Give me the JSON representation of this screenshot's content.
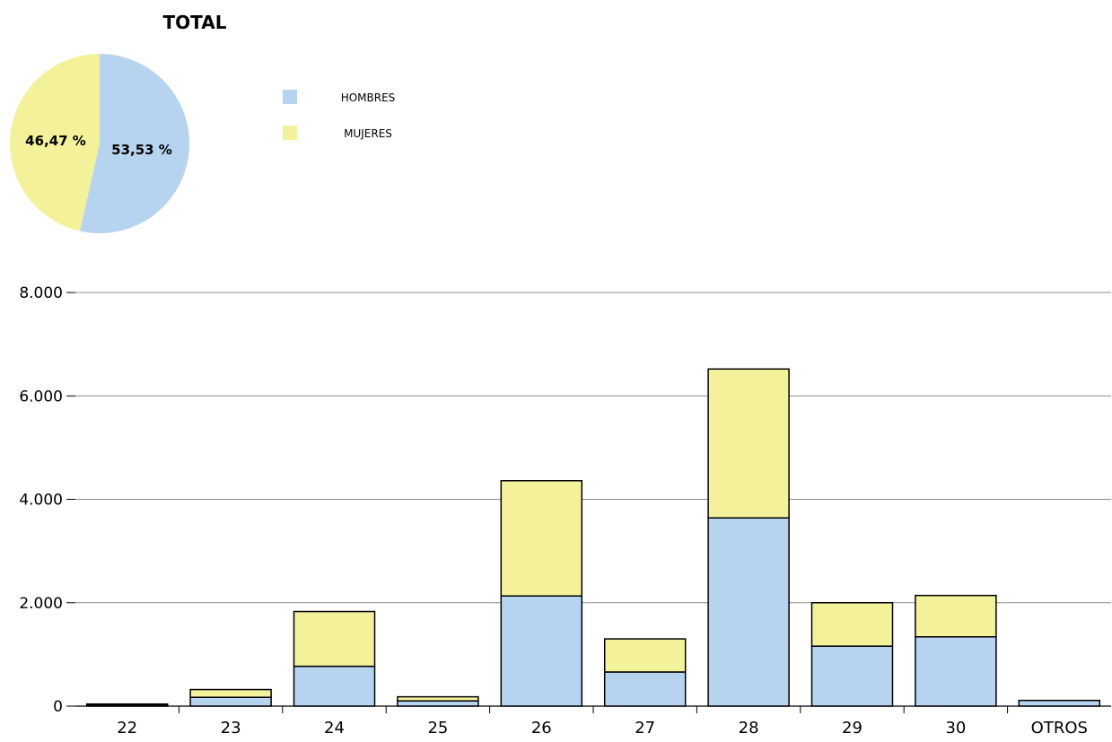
{
  "chart_data": [
    {
      "type": "pie",
      "title": "TOTAL",
      "slices": [
        {
          "label": "HOMBRES",
          "value": 53.53,
          "display": "53,53 %",
          "color": "#b6d3f0"
        },
        {
          "label": "MUJERES",
          "value": 46.47,
          "display": "46,47 %",
          "color": "#f3f29a"
        }
      ],
      "legend": {
        "placement": "right",
        "entries": [
          {
            "label": "HOMBRES",
            "color": "#b6d3f0"
          },
          {
            "label": "MUJERES",
            "color": "#f3f29a"
          }
        ]
      }
    },
    {
      "type": "bar",
      "stacked": true,
      "categories": [
        "22",
        "23",
        "24",
        "25",
        "26",
        "27",
        "28",
        "29",
        "30",
        "OTROS"
      ],
      "series": [
        {
          "name": "HOMBRES",
          "color": "#b6d3f0",
          "values": [
            25,
            170,
            770,
            100,
            2130,
            660,
            3640,
            1160,
            1340,
            110
          ]
        },
        {
          "name": "MUJERES",
          "color": "#f3f29a",
          "values": [
            15,
            150,
            1060,
            80,
            2230,
            640,
            2880,
            840,
            800,
            0
          ]
        }
      ],
      "ylim": [
        0,
        8000
      ],
      "yticks": [
        {
          "value": 0,
          "label": "0"
        },
        {
          "value": 2000,
          "label": "2.000"
        },
        {
          "value": 4000,
          "label": "4.000"
        },
        {
          "value": 6000,
          "label": "6.000"
        },
        {
          "value": 8000,
          "label": "8.000"
        }
      ],
      "grid": true,
      "xlabel": "",
      "ylabel": ""
    }
  ]
}
